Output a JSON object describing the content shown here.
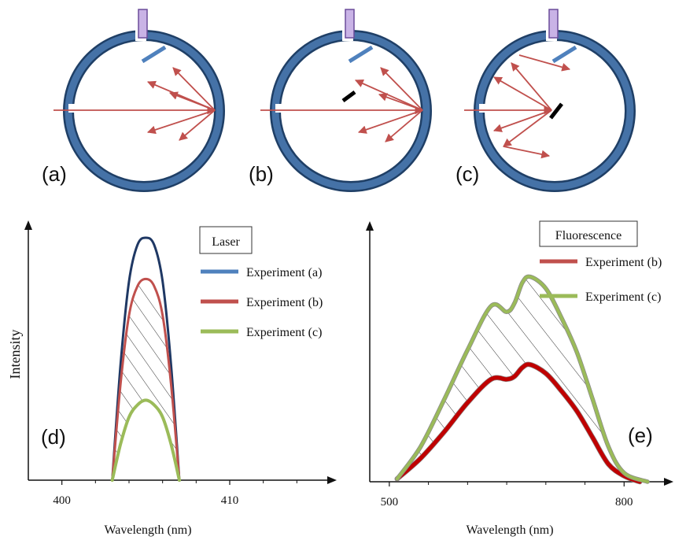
{
  "panels": {
    "a": "(a)",
    "b": "(b)",
    "c": "(c)",
    "d": "(d)",
    "e": "(e)"
  },
  "colors": {
    "sphere_outer": "#1f3f66",
    "sphere_fill": "#4572a7",
    "beam": "#c0504d",
    "baffle": "#4f81bd",
    "detector": "#c9b3e6",
    "sample": "#000000",
    "series_a": "#4f81bd",
    "series_a_stroke": "#1f3864",
    "series_b": "#c0504d",
    "series_c": "#9bbb59",
    "series_b_fluo": "#c00000"
  },
  "chart_data": [
    {
      "type": "line",
      "title": "Laser",
      "ylabel": "Intensity",
      "xlabel": "Wavelength (nm)",
      "xticks": [
        400,
        410
      ],
      "xlim": [
        398,
        416
      ],
      "ylim": [
        0,
        1
      ],
      "legend_placement": "top-right",
      "hatched_region": "between Experiment (a) and Experiment (c)",
      "series": [
        {
          "name": "Experiment (a)",
          "x": [
            403,
            403.5,
            404,
            404.5,
            405,
            405.5,
            406,
            406.5,
            407
          ],
          "y": [
            0,
            0.48,
            0.82,
            0.97,
            1.0,
            0.97,
            0.82,
            0.48,
            0
          ]
        },
        {
          "name": "Experiment (b)",
          "x": [
            403,
            403.5,
            404,
            404.5,
            405,
            405.5,
            406,
            406.5,
            407
          ],
          "y": [
            0,
            0.4,
            0.68,
            0.8,
            0.83,
            0.8,
            0.68,
            0.4,
            0
          ]
        },
        {
          "name": "Experiment (c)",
          "x": [
            403,
            403.5,
            404,
            404.5,
            405,
            405.5,
            406,
            406.5,
            407
          ],
          "y": [
            0,
            0.15,
            0.26,
            0.31,
            0.33,
            0.31,
            0.26,
            0.15,
            0
          ]
        }
      ]
    },
    {
      "type": "line",
      "title": "Fluorescence",
      "xlabel": "Wavelength (nm)",
      "xticks": [
        500,
        800
      ],
      "xlim": [
        475,
        855
      ],
      "ylim": [
        0,
        1
      ],
      "legend_placement": "top-left",
      "hatched_region": "between Experiment (b) and Experiment (c)",
      "series": [
        {
          "name": "Experiment (b)",
          "x": [
            510,
            540,
            570,
            600,
            630,
            650,
            660,
            670,
            680,
            700,
            720,
            740,
            760,
            780,
            800,
            820
          ],
          "y": [
            0.01,
            0.08,
            0.17,
            0.27,
            0.35,
            0.35,
            0.36,
            0.39,
            0.4,
            0.37,
            0.31,
            0.24,
            0.15,
            0.06,
            0.02,
            0.0
          ]
        },
        {
          "name": "Experiment (c)",
          "x": [
            510,
            540,
            570,
            600,
            630,
            650,
            660,
            670,
            680,
            700,
            720,
            740,
            760,
            780,
            800,
            830
          ],
          "y": [
            0.01,
            0.12,
            0.28,
            0.45,
            0.6,
            0.58,
            0.61,
            0.68,
            0.7,
            0.66,
            0.56,
            0.44,
            0.28,
            0.12,
            0.03,
            0.0
          ]
        }
      ]
    }
  ]
}
